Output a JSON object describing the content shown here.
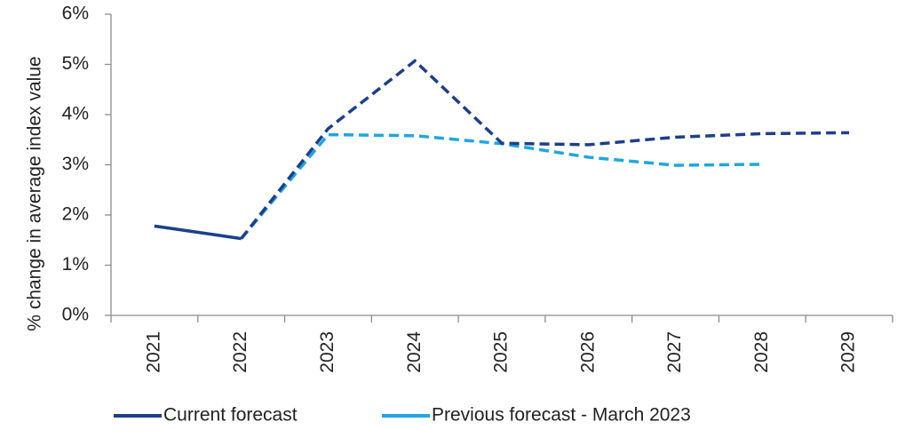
{
  "chart_data": {
    "type": "line",
    "y_axis_label": "% change in average index value",
    "categories": [
      "2021",
      "2022",
      "2023",
      "2024",
      "2025",
      "2026",
      "2027",
      "2028",
      "2029"
    ],
    "dashed_from": "2022",
    "series": [
      {
        "name": "Current forecast",
        "color": "#1c3f8c",
        "values": [
          1.78,
          1.53,
          3.72,
          5.07,
          3.43,
          3.4,
          3.55,
          3.62,
          3.64
        ]
      },
      {
        "name": "Previous forecast - March 2023",
        "color": "#1ea7e1",
        "values": [
          1.78,
          1.53,
          3.6,
          3.58,
          3.42,
          3.15,
          2.99,
          3.01,
          null
        ]
      }
    ],
    "ylim": [
      0,
      6
    ],
    "yticks": [
      {
        "value": 0,
        "label": "0%"
      },
      {
        "value": 1,
        "label": "1%"
      },
      {
        "value": 2,
        "label": "2%"
      },
      {
        "value": 3,
        "label": "3%"
      },
      {
        "value": 4,
        "label": "4%"
      },
      {
        "value": 5,
        "label": "5%"
      },
      {
        "value": 6,
        "label": "6%"
      }
    ],
    "grid": false,
    "legend": "bottom"
  }
}
